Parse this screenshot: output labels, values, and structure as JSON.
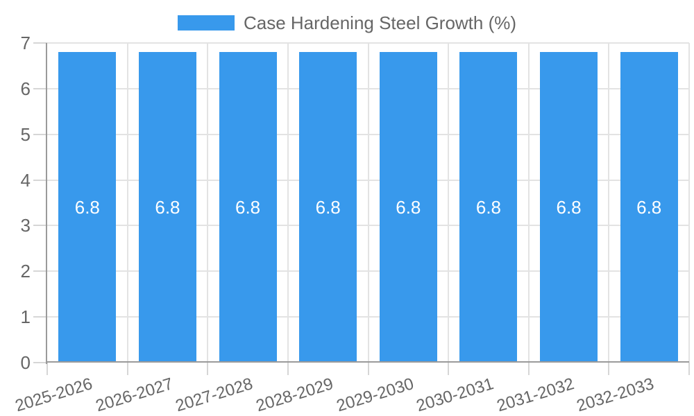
{
  "chart_data": {
    "type": "bar",
    "categories": [
      "2025-2026",
      "2026-2027",
      "2027-2028",
      "2028-2029",
      "2029-2030",
      "2030-2031",
      "2031-2032",
      "2032-2033"
    ],
    "series": [
      {
        "name": "Case Hardening Steel Growth (%)",
        "values": [
          6.8,
          6.8,
          6.8,
          6.8,
          6.8,
          6.8,
          6.8,
          6.8
        ],
        "color": "#3899ec"
      }
    ],
    "value_labels": [
      "6.8",
      "6.8",
      "6.8",
      "6.8",
      "6.8",
      "6.8",
      "6.8",
      "6.8"
    ],
    "title": "",
    "xlabel": "",
    "ylabel": "",
    "ylim": [
      0,
      7
    ],
    "yticks": [
      0,
      1,
      2,
      3,
      4,
      5,
      6,
      7
    ],
    "grid": true,
    "legend_position": "top",
    "colors": {
      "bar": "#3899ec",
      "value_label": "#ffffff",
      "axis_line": "#9a9a9a",
      "gridline": "#e3e3e3",
      "tick_text": "#666666",
      "background": "#ffffff"
    }
  }
}
